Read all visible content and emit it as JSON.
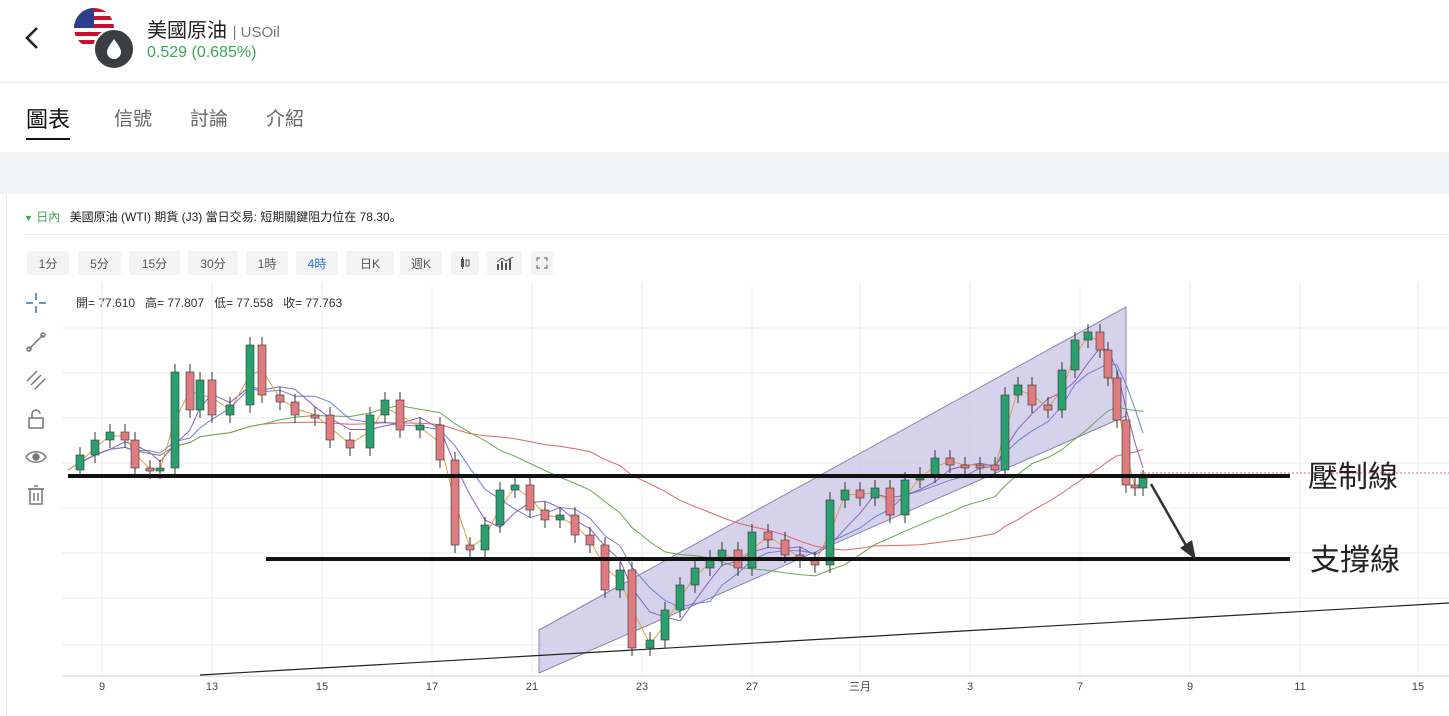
{
  "header": {
    "title": "美國原油",
    "symbol": "| USOil",
    "change": "0.529 (0.685%)"
  },
  "tabs": [
    "圖表",
    "信號",
    "討論",
    "介紹"
  ],
  "chart_header": {
    "timeframe": "日內",
    "headline": "美國原油 (WTI) 期貨 (J3) 當日交易: 短期關鍵阻力位在 78.30。"
  },
  "toolbar": [
    "1分",
    "5分",
    "15分",
    "30分",
    "1時",
    "4時",
    "日K",
    "週K"
  ],
  "active_interval": "4時",
  "ohlc": "開= 77.610   高= 77.807   低= 77.558   收= 77.763",
  "colors": {
    "up": "#2aa06f",
    "down": "#e07b80",
    "accent": "#3aa757",
    "channel": "#c9c3e6"
  },
  "chart_data": {
    "type": "candlestick",
    "x_tick_labels": [
      "9",
      "13",
      "15",
      "17",
      "21",
      "23",
      "27",
      "三月",
      "3",
      "7",
      "9",
      "11",
      "15"
    ],
    "annotations": [
      "壓制線",
      "支撐線"
    ]
  }
}
